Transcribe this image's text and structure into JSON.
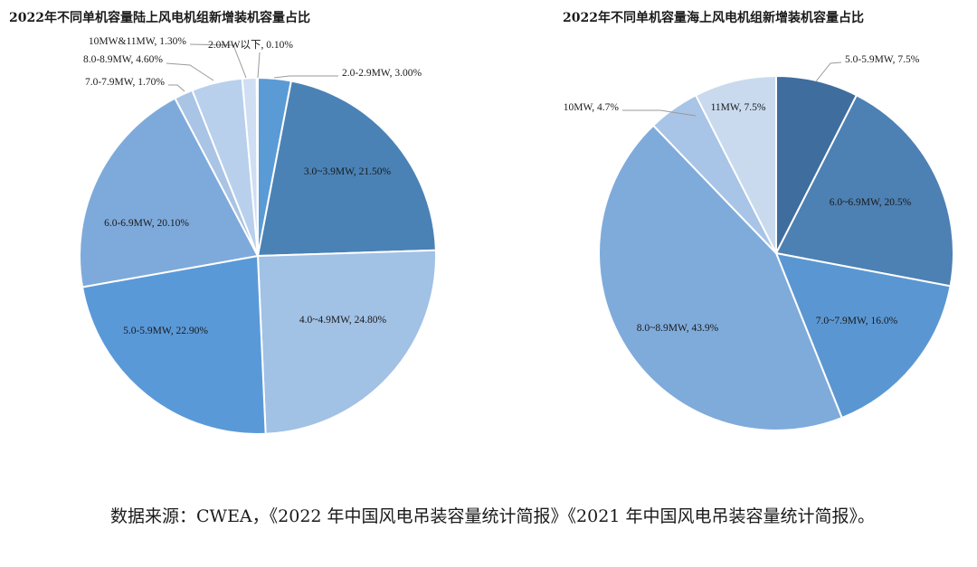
{
  "chart_data": [
    {
      "type": "pie",
      "title": "2022年不同单机容量陆上风电机组新增装机容量占比",
      "unit": "%",
      "slices": [
        {
          "label": "2.0-2.9MW, 3.00%",
          "value": 3.0,
          "color": "#5b9bd5"
        },
        {
          "label": "3.0~3.9MW, 21.50%",
          "value": 21.5,
          "color": "#4a82b6"
        },
        {
          "label": "4.0~4.9MW, 24.80%",
          "value": 24.8,
          "color": "#a1c1e5"
        },
        {
          "label": "5.0-5.9MW, 22.90%",
          "value": 22.9,
          "color": "#5a99d8"
        },
        {
          "label": "6.0-6.9MW, 20.10%",
          "value": 20.1,
          "color": "#7eaadb"
        },
        {
          "label": "7.0-7.9MW, 1.70%",
          "value": 1.7,
          "color": "#a9c4e4"
        },
        {
          "label": "8.0-8.9MW, 4.60%",
          "value": 4.6,
          "color": "#b8d0ec"
        },
        {
          "label": "10MW&11MW, 1.30%",
          "value": 1.3,
          "color": "#cfdef2"
        },
        {
          "label": "2.0MW以下, 0.10%",
          "value": 0.1,
          "color": "#dfe9f6"
        }
      ]
    },
    {
      "type": "pie",
      "title": "2022年不同单机容量海上风电机组新增装机容量占比",
      "unit": "%",
      "slices": [
        {
          "label": "5.0-5.9MW, 7.5%",
          "value": 7.5,
          "color": "#3f6d9d"
        },
        {
          "label": "6.0~6.9MW, 20.5%",
          "value": 20.5,
          "color": "#4d80b3"
        },
        {
          "label": "7.0~7.9MW, 16.0%",
          "value": 16.0,
          "color": "#5a97d2"
        },
        {
          "label": "8.0~8.9MW, 43.9%",
          "value": 43.9,
          "color": "#7fabdb"
        },
        {
          "label": "10MW, 4.7%",
          "value": 4.7,
          "color": "#a8c4e6"
        },
        {
          "label": "11MW, 7.5%",
          "value": 7.5,
          "color": "#c9daef"
        }
      ]
    }
  ],
  "source_note": "数据来源：CWEA，《2022 年中国风电吊装容量统计简报》《2021 年中国风电吊装容量统计简报》。"
}
